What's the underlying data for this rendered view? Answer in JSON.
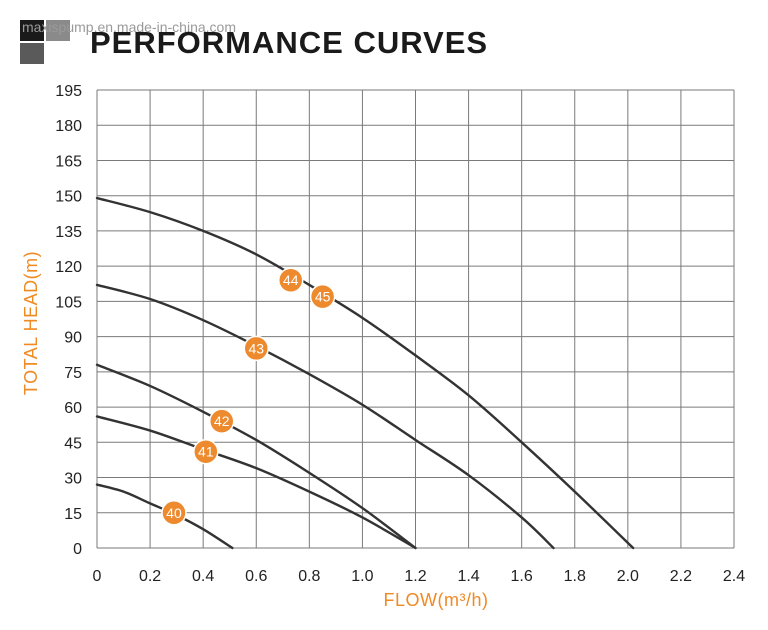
{
  "watermark": "maxispump.en.made-in-china.com",
  "chart_data": {
    "type": "line",
    "title": "PERFORMANCE CURVES",
    "xlabel": "FLOW(m³/h)",
    "ylabel": "TOTAL HEAD(m)",
    "xlim": [
      0,
      2.4
    ],
    "ylim": [
      0,
      195
    ],
    "xticks": [
      0,
      0.2,
      0.4,
      0.6,
      0.8,
      1.0,
      1.2,
      1.4,
      1.6,
      1.8,
      2.0,
      2.2,
      2.4
    ],
    "xtick_labels": [
      "0",
      "0.2",
      "0.4",
      "0.6",
      "0.8",
      "1.0",
      "1.2",
      "1.4",
      "1.6",
      "1.8",
      "2.0",
      "2.2",
      "2.4"
    ],
    "yticks": [
      0,
      15,
      30,
      45,
      60,
      75,
      90,
      105,
      120,
      135,
      150,
      165,
      180,
      195
    ],
    "ytick_labels": [
      "0",
      "15",
      "30",
      "45",
      "60",
      "75",
      "90",
      "105",
      "120",
      "135",
      "150",
      "165",
      "180",
      "195"
    ],
    "grid": true,
    "marker_color": "#ee8a2e",
    "series": [
      {
        "name": "40",
        "label_at": [
          0.29,
          15
        ],
        "points": [
          [
            0,
            27
          ],
          [
            0.1,
            24
          ],
          [
            0.2,
            19
          ],
          [
            0.3,
            14
          ],
          [
            0.4,
            8
          ],
          [
            0.51,
            0
          ]
        ]
      },
      {
        "name": "41",
        "label_at": [
          0.41,
          41
        ],
        "points": [
          [
            0,
            56
          ],
          [
            0.2,
            50
          ],
          [
            0.4,
            42
          ],
          [
            0.6,
            34
          ],
          [
            0.8,
            24
          ],
          [
            1.0,
            13
          ],
          [
            1.2,
            0
          ]
        ]
      },
      {
        "name": "42",
        "label_at": [
          0.47,
          54
        ],
        "points": [
          [
            0,
            78
          ],
          [
            0.2,
            69
          ],
          [
            0.4,
            58
          ],
          [
            0.6,
            46
          ],
          [
            0.8,
            32
          ],
          [
            1.0,
            17
          ],
          [
            1.2,
            0
          ]
        ]
      },
      {
        "name": "43",
        "label_at": [
          0.6,
          85
        ],
        "points": [
          [
            0,
            112
          ],
          [
            0.2,
            106
          ],
          [
            0.4,
            97
          ],
          [
            0.6,
            86
          ],
          [
            0.8,
            74
          ],
          [
            1.0,
            61
          ],
          [
            1.2,
            46
          ],
          [
            1.4,
            31
          ],
          [
            1.6,
            13
          ],
          [
            1.72,
            0
          ]
        ]
      },
      {
        "name": "44",
        "label_at": [
          0.73,
          114
        ],
        "points": [
          [
            0,
            149
          ],
          [
            0.2,
            143
          ],
          [
            0.4,
            135
          ],
          [
            0.6,
            125
          ],
          [
            0.8,
            112
          ],
          [
            1.0,
            98
          ],
          [
            1.2,
            82
          ],
          [
            1.4,
            65
          ],
          [
            1.6,
            45
          ],
          [
            1.8,
            24
          ],
          [
            2.02,
            0
          ]
        ]
      },
      {
        "name": "45",
        "label_at": [
          0.85,
          107
        ],
        "points": []
      }
    ]
  }
}
